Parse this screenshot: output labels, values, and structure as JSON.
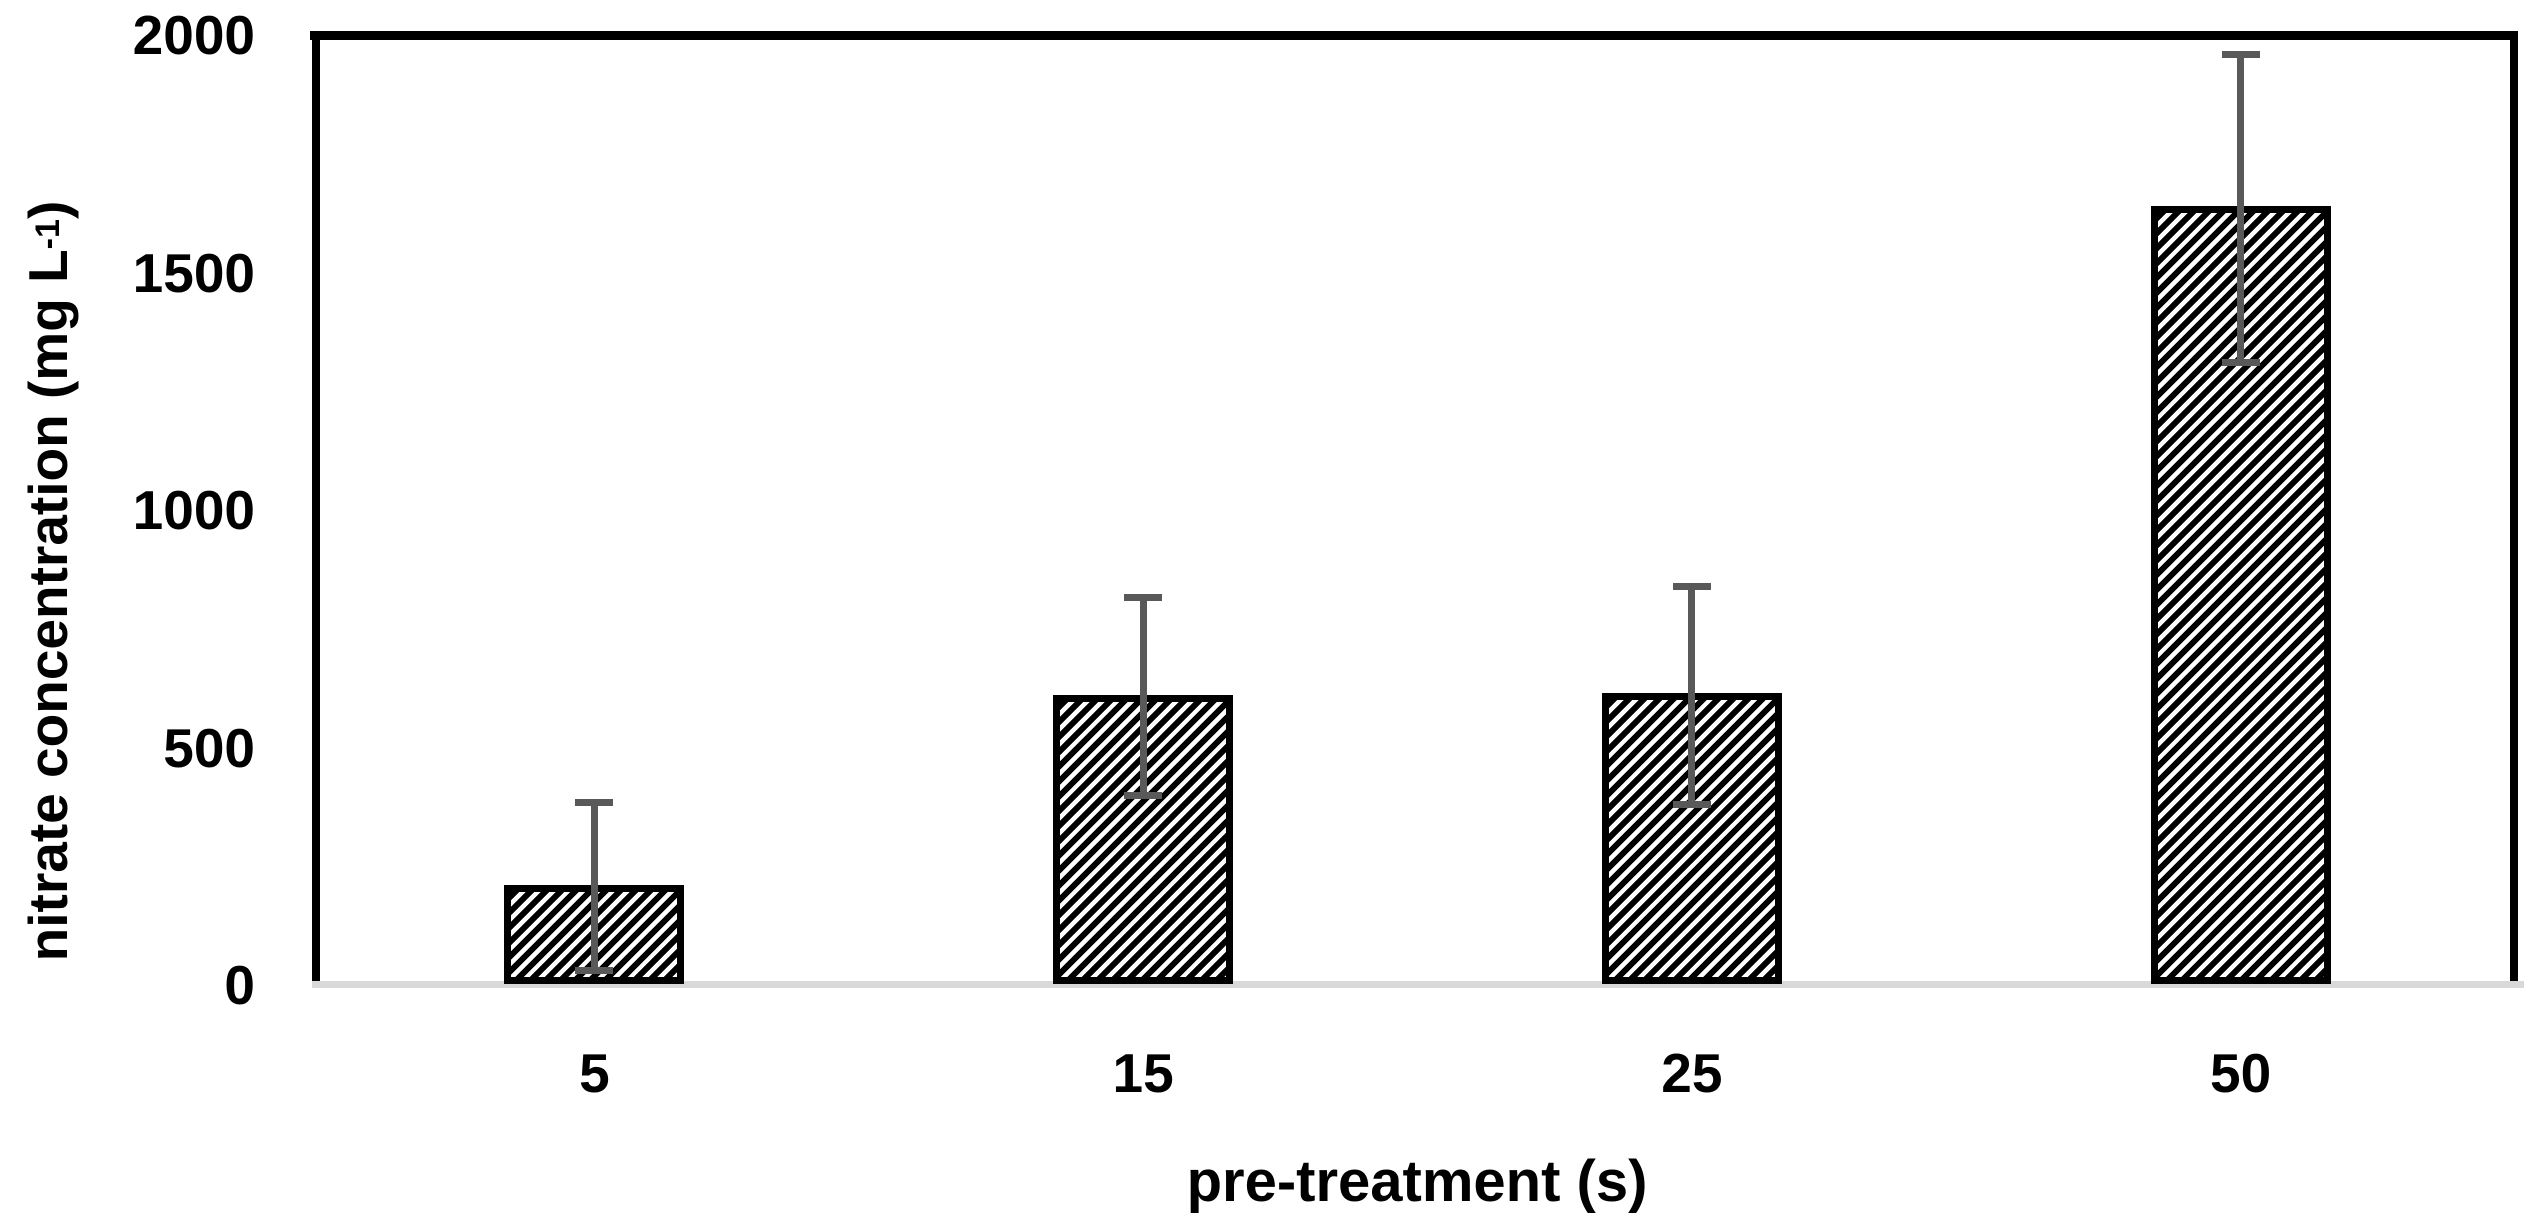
{
  "chart_data": {
    "type": "bar",
    "title": "",
    "xlabel": "pre-treatment (s)",
    "ylabel": "nitrate concentration (mg L-1)",
    "ylabel_parts": {
      "main": "nitrate concentration (mg L",
      "superscript": "-1",
      "suffix": ")"
    },
    "categories": [
      "5",
      "15",
      "25",
      "50"
    ],
    "values": [
      210,
      610,
      615,
      1640
    ],
    "error_whiskers": [
      {
        "category": "5",
        "value": 210,
        "whisker_low": 30,
        "whisker_high": 385
      },
      {
        "category": "15",
        "value": 610,
        "whisker_low": 400,
        "whisker_high": 815
      },
      {
        "category": "25",
        "value": 615,
        "whisker_low": 380,
        "whisker_high": 840
      },
      {
        "category": "50",
        "value": 1640,
        "whisker_low": 1310,
        "whisker_high": 1960
      }
    ],
    "ylim": [
      0,
      2000
    ],
    "yticks": [
      0,
      500,
      1000,
      1500,
      2000
    ],
    "grid": false,
    "legend": null,
    "bar_style": {
      "fill": "diagonal-hatch-up",
      "hatch_color": "#000000",
      "background_color": "#ffffff",
      "border_color": "#000000"
    },
    "error_bar_color": "#595959",
    "baseline_color": "#d9d9d9",
    "text_color": "#000000"
  }
}
